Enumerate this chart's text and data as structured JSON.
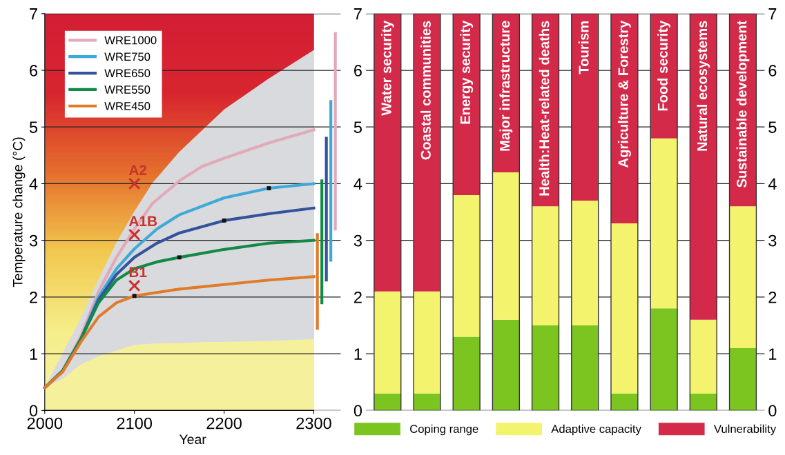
{
  "chart_data": [
    {
      "type": "line",
      "xlabel": "Year",
      "ylabel": "Temperature change (°C)",
      "xlim": [
        2000,
        2330
      ],
      "xticks": [
        2000,
        2100,
        2200,
        2300
      ],
      "ylim": [
        0,
        7
      ],
      "yticks": [
        0,
        1,
        2,
        3,
        4,
        5,
        6,
        7
      ],
      "grid": "y",
      "legend": "top left",
      "series": [
        {
          "type": "area",
          "color": "#d9dadd",
          "x": [
            2000,
            2040,
            2060,
            2080,
            2100,
            2120,
            2150,
            2180,
            2200,
            2250,
            2300
          ],
          "values": [
            0.4,
            1.6,
            2.3,
            2.95,
            3.5,
            4.0,
            4.55,
            5.0,
            5.3,
            5.85,
            6.35
          ]
        },
        {
          "type": "area",
          "color": "#f5f09c",
          "x": [
            2000,
            2020,
            2040,
            2060,
            2080,
            2100,
            2120,
            2150,
            2180,
            2200,
            2250,
            2300
          ],
          "values": [
            0.4,
            0.55,
            0.8,
            0.95,
            1.05,
            1.15,
            1.17,
            1.18,
            1.2,
            1.2,
            1.22,
            1.25
          ]
        },
        {
          "name": "WRE1000",
          "color": "#e2a9b8",
          "x": [
            2000,
            2020,
            2040,
            2060,
            2080,
            2100,
            2120,
            2150,
            2175,
            2200,
            2250,
            2300
          ],
          "values": [
            0.4,
            0.7,
            1.3,
            2.1,
            2.7,
            3.2,
            3.65,
            4.05,
            4.3,
            4.45,
            4.72,
            4.95
          ]
        },
        {
          "name": "WRE750",
          "color": "#3fa9d6",
          "x": [
            2000,
            2020,
            2040,
            2060,
            2080,
            2100,
            2125,
            2150,
            2200,
            2250,
            2300
          ],
          "values": [
            0.4,
            0.7,
            1.25,
            2.0,
            2.5,
            2.85,
            3.2,
            3.45,
            3.75,
            3.92,
            4.0
          ]
        },
        {
          "name": "WRE650",
          "color": "#34539b",
          "x": [
            2000,
            2020,
            2040,
            2060,
            2080,
            2100,
            2125,
            2150,
            2200,
            2250,
            2300
          ],
          "values": [
            0.4,
            0.7,
            1.25,
            1.95,
            2.4,
            2.7,
            2.95,
            3.13,
            3.35,
            3.47,
            3.57
          ]
        },
        {
          "name": "WRE550",
          "color": "#118a47",
          "x": [
            2000,
            2020,
            2040,
            2060,
            2080,
            2100,
            2125,
            2150,
            2200,
            2250,
            2300
          ],
          "values": [
            0.4,
            0.7,
            1.25,
            1.9,
            2.3,
            2.5,
            2.62,
            2.7,
            2.84,
            2.95,
            3.0
          ]
        },
        {
          "name": "WRE450",
          "color": "#e07b2b",
          "x": [
            2000,
            2020,
            2040,
            2060,
            2080,
            2100,
            2150,
            2200,
            2250,
            2300
          ],
          "values": [
            0.4,
            0.68,
            1.2,
            1.65,
            1.9,
            2.02,
            2.14,
            2.22,
            2.3,
            2.36
          ]
        },
        {
          "type": "scatter",
          "marker": "square",
          "color": "#111111",
          "x": [
            2250,
            2200,
            2150,
            2100
          ],
          "values": [
            3.92,
            3.35,
            2.7,
            2.02
          ]
        },
        {
          "type": "scatter",
          "marker": "x",
          "color": "#c8322d",
          "x": [
            2100,
            2100,
            2100
          ],
          "values": [
            4.0,
            3.1,
            2.2
          ],
          "value_labels": [
            "A2",
            "A1B",
            "B1"
          ]
        },
        {
          "color": "#e07b2b",
          "x": [
            2304,
            2304
          ],
          "values": [
            1.45,
            3.1
          ]
        },
        {
          "color": "#118a47",
          "x": [
            2309,
            2309
          ],
          "values": [
            1.9,
            4.05
          ]
        },
        {
          "color": "#34539b",
          "x": [
            2314,
            2314
          ],
          "values": [
            2.3,
            4.8
          ]
        },
        {
          "color": "#3fa9d6",
          "x": [
            2319,
            2319
          ],
          "values": [
            2.65,
            5.45
          ]
        },
        {
          "color": "#e2a9b8",
          "x": [
            2324,
            2324
          ],
          "values": [
            3.2,
            6.65
          ]
        }
      ]
    },
    {
      "type": "bar",
      "stacked": true,
      "legend": "bottom",
      "grid": "y",
      "ylim": [
        0,
        7
      ],
      "yticks": [
        0,
        1,
        2,
        3,
        4,
        5,
        6,
        7
      ],
      "y2lim": [
        0,
        7
      ],
      "y2ticks": [
        0,
        1,
        2,
        3,
        4,
        5,
        6,
        7
      ],
      "categories": [
        "Water security",
        "Coastal communities",
        "Energy security",
        "Major infrastructure",
        "Health:Heat-related deaths",
        "Tourism",
        "Agriculture & Forestry",
        "Food security",
        "Natural ecosystems",
        "Sustainable development"
      ],
      "series": [
        {
          "name": "Coping range",
          "color": "#7cc520",
          "values": [
            0.3,
            0.3,
            1.3,
            1.6,
            1.5,
            1.5,
            0.3,
            1.8,
            0.3,
            1.1
          ]
        },
        {
          "name": "Adaptive capacity",
          "color": "#f3f36e",
          "values": [
            1.8,
            1.8,
            2.5,
            2.6,
            2.1,
            2.2,
            3.0,
            3.0,
            1.3,
            2.5
          ]
        },
        {
          "name": "Vulnerability",
          "color": "#d42a4a",
          "values": [
            4.9,
            4.9,
            3.2,
            2.8,
            3.4,
            3.3,
            3.7,
            2.2,
            5.4,
            3.4
          ]
        }
      ]
    }
  ]
}
